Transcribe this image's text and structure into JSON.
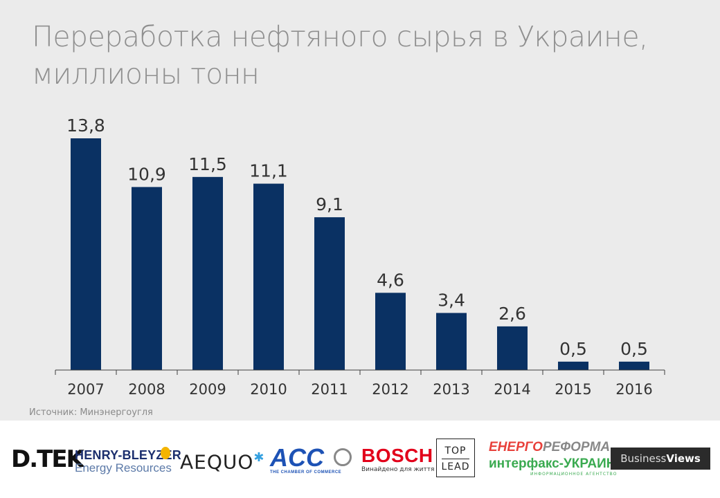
{
  "title": {
    "line1": "Переработка нефтяного сырья в Украине,",
    "line2": "миллионы тонн"
  },
  "source": "Источник: Минэнергоугля",
  "colors": {
    "bar": "#0a3163",
    "background": "#ebebeb",
    "title": "#8f8f8f",
    "axis": "#3c3c3c"
  },
  "chart_data": {
    "type": "bar",
    "title": "Переработка нефтяного сырья в Украине, миллионы тонн",
    "categories": [
      "2007",
      "2008",
      "2009",
      "2010",
      "2011",
      "2012",
      "2013",
      "2014",
      "2015",
      "2016"
    ],
    "values": [
      13.8,
      10.9,
      11.5,
      11.1,
      9.1,
      4.6,
      3.4,
      2.6,
      0.5,
      0.5
    ],
    "labels": [
      "13,8",
      "10,9",
      "11,5",
      "11,1",
      "9,1",
      "4,6",
      "3,4",
      "2,6",
      "0,5",
      "0,5"
    ],
    "xlabel": "",
    "ylabel": "",
    "ylim": [
      0,
      13.8
    ],
    "grid": false,
    "legend": "none"
  },
  "logos": {
    "dtek": "D.TEK",
    "henry_bleyzer_1": "HENRY-BLEYZER",
    "henry_bleyzer_2": "Energy Resources",
    "aequo": "AEQUO",
    "acc_1": "ACC",
    "acc_2": "THE CHAMBER OF COMMERCE",
    "bosch_1": "BOSCH",
    "bosch_2": "Винайдено для життя",
    "toplead_1": "TOP",
    "toplead_2": "LEAD",
    "energoreforma_a": "ЕНЕРГО",
    "energoreforma_b": "РЕФОРМА",
    "interfax": "интерфакс-УКРАИНА",
    "interfax_sub": "ИНФОРМАЦИОННОЕ АГЕНТСТВО",
    "bv_1": "Business",
    "bv_2": "Views"
  }
}
